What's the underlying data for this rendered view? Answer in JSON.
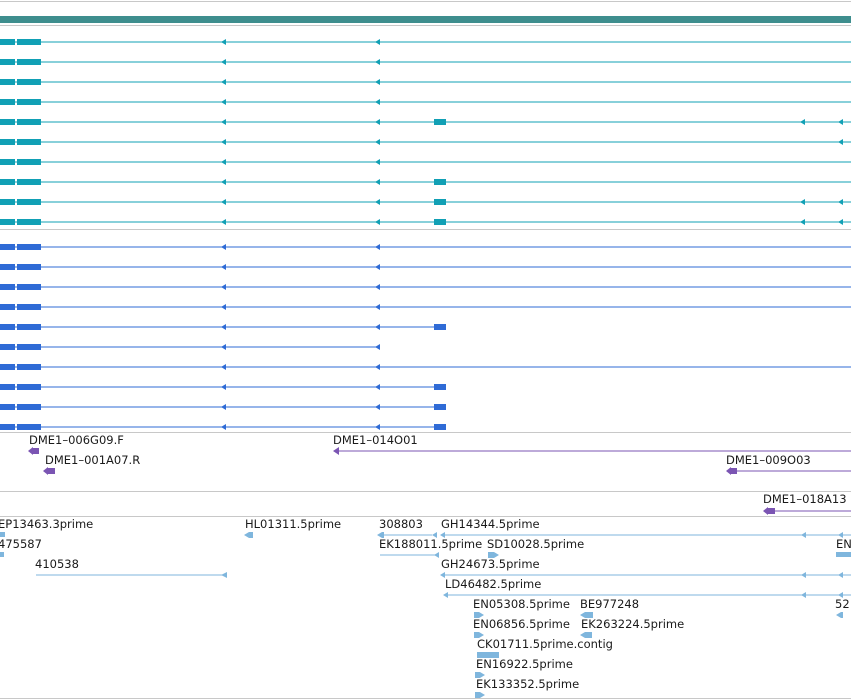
{
  "colors": {
    "background": "#ffffff",
    "divider": "#c8c8c8",
    "ruler": "#3e8e8e",
    "transcript_a": "#11a0b5",
    "transcript_b": "#2f6bd6",
    "bac_end": "#7b55b3",
    "est": "#7fb6dd",
    "label": "#1a1a1a"
  },
  "ruler": {
    "icon": "coordinate-ruler-bar"
  },
  "track_transcripts_a": {
    "icon": "gene-model-glyph",
    "rows": [
      {
        "exons": "standard"
      },
      {
        "exons": "standard"
      },
      {
        "exons": "standard"
      },
      {
        "exons": "standard"
      },
      {
        "exons": "extended-with-far-exons"
      },
      {
        "exons": "standard-far-arrow"
      },
      {
        "exons": "standard"
      },
      {
        "exons": "with-block"
      },
      {
        "exons": "extended-with-far-exons"
      },
      {
        "exons": "extended-with-far-exons"
      }
    ]
  },
  "track_transcripts_b": {
    "icon": "gene-model-glyph",
    "rows": [
      {
        "exons": "standard"
      },
      {
        "exons": "standard"
      },
      {
        "exons": "standard"
      },
      {
        "exons": "standard"
      },
      {
        "exons": "short-with-block"
      },
      {
        "exons": "short"
      },
      {
        "exons": "standard"
      },
      {
        "exons": "short-with-block"
      },
      {
        "exons": "short-with-block"
      },
      {
        "exons": "short-with-block"
      }
    ]
  },
  "track_bac_ends": {
    "features": [
      {
        "label": "DME1–006G09.F"
      },
      {
        "label": "DME1–001A07.R"
      },
      {
        "label": "DME1–014O01"
      },
      {
        "label": "DME1–009O03"
      },
      {
        "label": "DME1–018A13"
      }
    ]
  },
  "track_ests": {
    "features": [
      {
        "label": "EP13463.3prime"
      },
      {
        "label": "475587"
      },
      {
        "label": "410538"
      },
      {
        "label": "HL01311.5prime"
      },
      {
        "label": "308803"
      },
      {
        "label": "EK188011.5prime"
      },
      {
        "label": "GH14344.5prime"
      },
      {
        "label": "SD10028.5prime"
      },
      {
        "label": "GH24673.5prime"
      },
      {
        "label": "LD46482.5prime"
      },
      {
        "label": "EN05308.5prime"
      },
      {
        "label": "BE977248"
      },
      {
        "label": "EN06856.5prime"
      },
      {
        "label": "EK263224.5prime"
      },
      {
        "label": "CK01711.5prime.contig"
      },
      {
        "label": "EN16922.5prime"
      },
      {
        "label": "EK133352.5prime"
      },
      {
        "label": "EN"
      },
      {
        "label": "52"
      }
    ]
  }
}
